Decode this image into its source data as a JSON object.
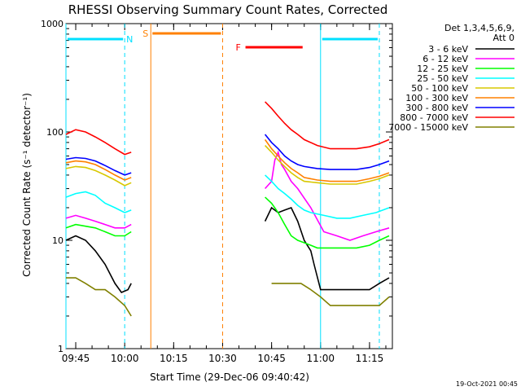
{
  "chart_data": {
    "type": "line",
    "title": "RHESSI Observing Summary Count Rates, Corrected",
    "xlabel": "Start Time (29-Dec-06 09:40:42)",
    "ylabel": "Corrected Count Rate (s⁻¹ detector⁻¹)",
    "yscale": "log",
    "ylim": [
      1,
      1000
    ],
    "xlim_minutes": [
      -3.0,
      97.0
    ],
    "x_ticks": [
      {
        "label": "09:45",
        "minute": 0
      },
      {
        "label": "10:00",
        "minute": 15
      },
      {
        "label": "10:15",
        "minute": 30
      },
      {
        "label": "10:30",
        "minute": 45
      },
      {
        "label": "10:45",
        "minute": 60
      },
      {
        "label": "11:00",
        "minute": 75
      },
      {
        "label": "11:15",
        "minute": 90
      }
    ],
    "y_ticks": [
      {
        "label": "1",
        "value": 1
      },
      {
        "label": "10",
        "value": 10
      },
      {
        "label": "100",
        "value": 100
      },
      {
        "label": "1000",
        "value": 1000
      }
    ],
    "legend": {
      "placement": "right",
      "header": [
        "Det 1,3,4,5,6,9,",
        "Att 0"
      ]
    },
    "series": [
      {
        "name": "3 - 6 keV",
        "color": "#000000",
        "x": [
          -3,
          0,
          3,
          6,
          9,
          12,
          14,
          16,
          17
        ],
        "y": [
          10,
          11,
          10,
          8,
          6,
          4,
          3.3,
          3.5,
          4
        ],
        "x2": [
          58,
          60,
          62,
          64,
          66,
          68,
          70,
          72,
          73,
          75,
          78,
          81,
          84,
          87,
          90,
          93,
          96
        ],
        "y2": [
          15,
          20,
          18,
          19,
          20,
          15,
          10,
          8,
          6,
          3.5,
          3.5,
          3.5,
          3.5,
          3.5,
          3.5,
          4,
          4.5
        ]
      },
      {
        "name": "6 - 12 keV",
        "color": "#ff00ff",
        "x": [
          -3,
          0,
          3,
          6,
          9,
          12,
          15,
          17
        ],
        "y": [
          16,
          17,
          16,
          15,
          14,
          13,
          13,
          14
        ],
        "x2": [
          58,
          60,
          61,
          62,
          63,
          64,
          66,
          68,
          72,
          76,
          80,
          84,
          88,
          92,
          96
        ],
        "y2": [
          30,
          35,
          55,
          65,
          50,
          45,
          35,
          30,
          20,
          12,
          11,
          10,
          11,
          12,
          13
        ]
      },
      {
        "name": "12 - 25 keV",
        "color": "#00ff00",
        "x": [
          -3,
          0,
          3,
          6,
          9,
          12,
          15,
          17
        ],
        "y": [
          13,
          14,
          13.5,
          13,
          12,
          11,
          11,
          12
        ],
        "x2": [
          58,
          60,
          62,
          64,
          66,
          68,
          70,
          72,
          74,
          78,
          82,
          86,
          90,
          93,
          96
        ],
        "y2": [
          25,
          22,
          18,
          14,
          11,
          10,
          9.5,
          9,
          8.5,
          8.5,
          8.5,
          8.5,
          9,
          10,
          11
        ]
      },
      {
        "name": "25 - 50 keV",
        "color": "#00ffff",
        "x": [
          -3,
          0,
          3,
          6,
          9,
          12,
          15,
          17
        ],
        "y": [
          25,
          27,
          28,
          26,
          22,
          20,
          18,
          19
        ],
        "x2": [
          58,
          60,
          62,
          64,
          66,
          68,
          70,
          72,
          76,
          80,
          84,
          88,
          92,
          96
        ],
        "y2": [
          40,
          35,
          30,
          27,
          24,
          21,
          19,
          18,
          17,
          16,
          16,
          17,
          18,
          20
        ]
      },
      {
        "name": "50 - 100 keV",
        "color": "#d8c800",
        "x": [
          -3,
          0,
          3,
          6,
          9,
          12,
          15,
          17
        ],
        "y": [
          46,
          48,
          47,
          44,
          40,
          36,
          32,
          34
        ],
        "x2": [
          58,
          60,
          62,
          64,
          66,
          68,
          70,
          74,
          78,
          82,
          86,
          90,
          93,
          96
        ],
        "y2": [
          75,
          65,
          55,
          48,
          42,
          38,
          35,
          34,
          33,
          33,
          33,
          35,
          37,
          40
        ]
      },
      {
        "name": "100 - 300 keV",
        "color": "#ff8000",
        "x": [
          -3,
          0,
          3,
          6,
          9,
          12,
          15,
          17
        ],
        "y": [
          52,
          54,
          53,
          50,
          45,
          40,
          36,
          38
        ],
        "x2": [
          58,
          60,
          62,
          64,
          66,
          68,
          70,
          74,
          78,
          82,
          86,
          90,
          93,
          96
        ],
        "y2": [
          85,
          70,
          60,
          52,
          46,
          42,
          38,
          36,
          35,
          35,
          35,
          37,
          39,
          42
        ]
      },
      {
        "name": "300 - 800 keV",
        "color": "#0000ff",
        "x": [
          -3,
          0,
          3,
          6,
          9,
          12,
          15,
          17
        ],
        "y": [
          56,
          58,
          57,
          54,
          49,
          44,
          40,
          42
        ],
        "x2": [
          58,
          60,
          62,
          64,
          66,
          68,
          70,
          74,
          78,
          82,
          86,
          90,
          93,
          96
        ],
        "y2": [
          95,
          80,
          70,
          60,
          54,
          50,
          48,
          46,
          45,
          45,
          45,
          47,
          50,
          54
        ]
      },
      {
        "name": "800 - 7000 keV",
        "color": "#ff0000",
        "x": [
          -3,
          0,
          3,
          6,
          9,
          12,
          15,
          17
        ],
        "y": [
          95,
          105,
          100,
          90,
          80,
          70,
          62,
          65
        ],
        "x2": [
          58,
          60,
          62,
          64,
          66,
          68,
          70,
          74,
          78,
          82,
          86,
          90,
          93,
          96
        ],
        "y2": [
          190,
          165,
          140,
          120,
          105,
          95,
          85,
          75,
          70,
          70,
          70,
          73,
          78,
          85
        ]
      },
      {
        "name": "7000 - 15000 keV",
        "color": "#808000",
        "x": [
          -3,
          0,
          3,
          6,
          9,
          12,
          15,
          17
        ],
        "y": [
          4.5,
          4.5,
          4,
          3.5,
          3.5,
          3,
          2.5,
          2
        ],
        "x2": [
          60,
          63,
          66,
          69,
          72,
          75,
          78,
          81,
          84,
          87,
          90,
          93,
          96
        ],
        "y2": [
          4,
          4,
          4,
          4,
          3.5,
          3,
          2.5,
          2.5,
          2.5,
          2.5,
          2.5,
          2.5,
          3
        ]
      }
    ],
    "flags": [
      {
        "label": "N",
        "color": "#00e0ff",
        "start": -3,
        "end": 15
      },
      {
        "label": "",
        "color": "#00e0ff",
        "start": 75,
        "end": 93
      },
      {
        "label": "S",
        "color": "#ff8000",
        "start": 23,
        "end": 45
      },
      {
        "label": "F",
        "color": "#ff0000",
        "start": 52,
        "end": 70
      }
    ],
    "vertical_lines": [
      {
        "minute": -3,
        "color": "#00e0ff",
        "style": "solid"
      },
      {
        "minute": 15,
        "color": "#00e0ff",
        "style": "dashed"
      },
      {
        "minute": 23,
        "color": "#ff8000",
        "style": "solid"
      },
      {
        "minute": 45,
        "color": "#ff8000",
        "style": "dashed"
      },
      {
        "minute": 75,
        "color": "#00e0ff",
        "style": "solid"
      },
      {
        "minute": 93,
        "color": "#00e0ff",
        "style": "dashed"
      }
    ],
    "timestamp": "19-Oct-2021 00:45"
  }
}
